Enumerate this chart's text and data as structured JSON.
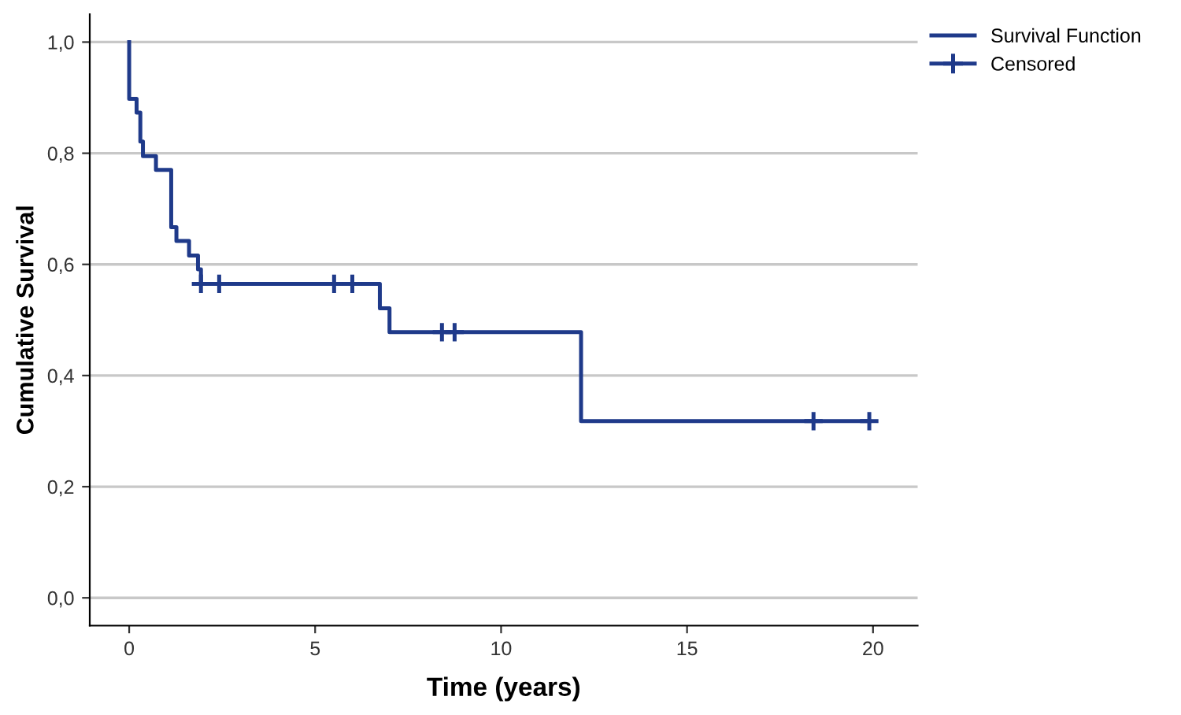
{
  "chart_data": {
    "type": "step",
    "xlabel": "Time (years)",
    "ylabel": "Cumulative Survival",
    "series": [
      {
        "name": "Survival Function",
        "color": "#1f3a8a",
        "x": [
          0.0,
          0.0,
          0.2,
          0.3,
          0.37,
          0.72,
          1.13,
          1.27,
          1.61,
          1.85,
          1.93,
          6.74,
          7.0,
          12.15,
          19.9
        ],
        "values": [
          1.0,
          0.898,
          0.873,
          0.821,
          0.795,
          0.77,
          0.667,
          0.642,
          0.616,
          0.591,
          0.565,
          0.521,
          0.478,
          0.318,
          0.318
        ]
      },
      {
        "name": "Censored",
        "type": "scatter",
        "marker": "cross",
        "color": "#1f3a8a",
        "x": [
          1.93,
          2.42,
          5.51,
          6.0,
          8.41,
          8.75,
          18.4,
          19.9
        ],
        "values": [
          0.565,
          0.565,
          0.565,
          0.565,
          0.478,
          0.478,
          0.318,
          0.318
        ]
      }
    ],
    "xlim": [
      -1.06,
      21.2
    ],
    "ylim": [
      -0.05,
      1.05
    ],
    "xticks": [
      0,
      5,
      10,
      15,
      20
    ],
    "yticks": [
      {
        "value": 0,
        "label": "0,0"
      },
      {
        "value": 0.2,
        "label": "0,2"
      },
      {
        "value": 0.4,
        "label": "0,4"
      },
      {
        "value": 0.6,
        "label": "0,6"
      },
      {
        "value": 0.8,
        "label": "0,8"
      },
      {
        "value": 1.0,
        "label": "1,0"
      }
    ],
    "grid": "y",
    "legend": "top right",
    "line_style": "solid"
  }
}
